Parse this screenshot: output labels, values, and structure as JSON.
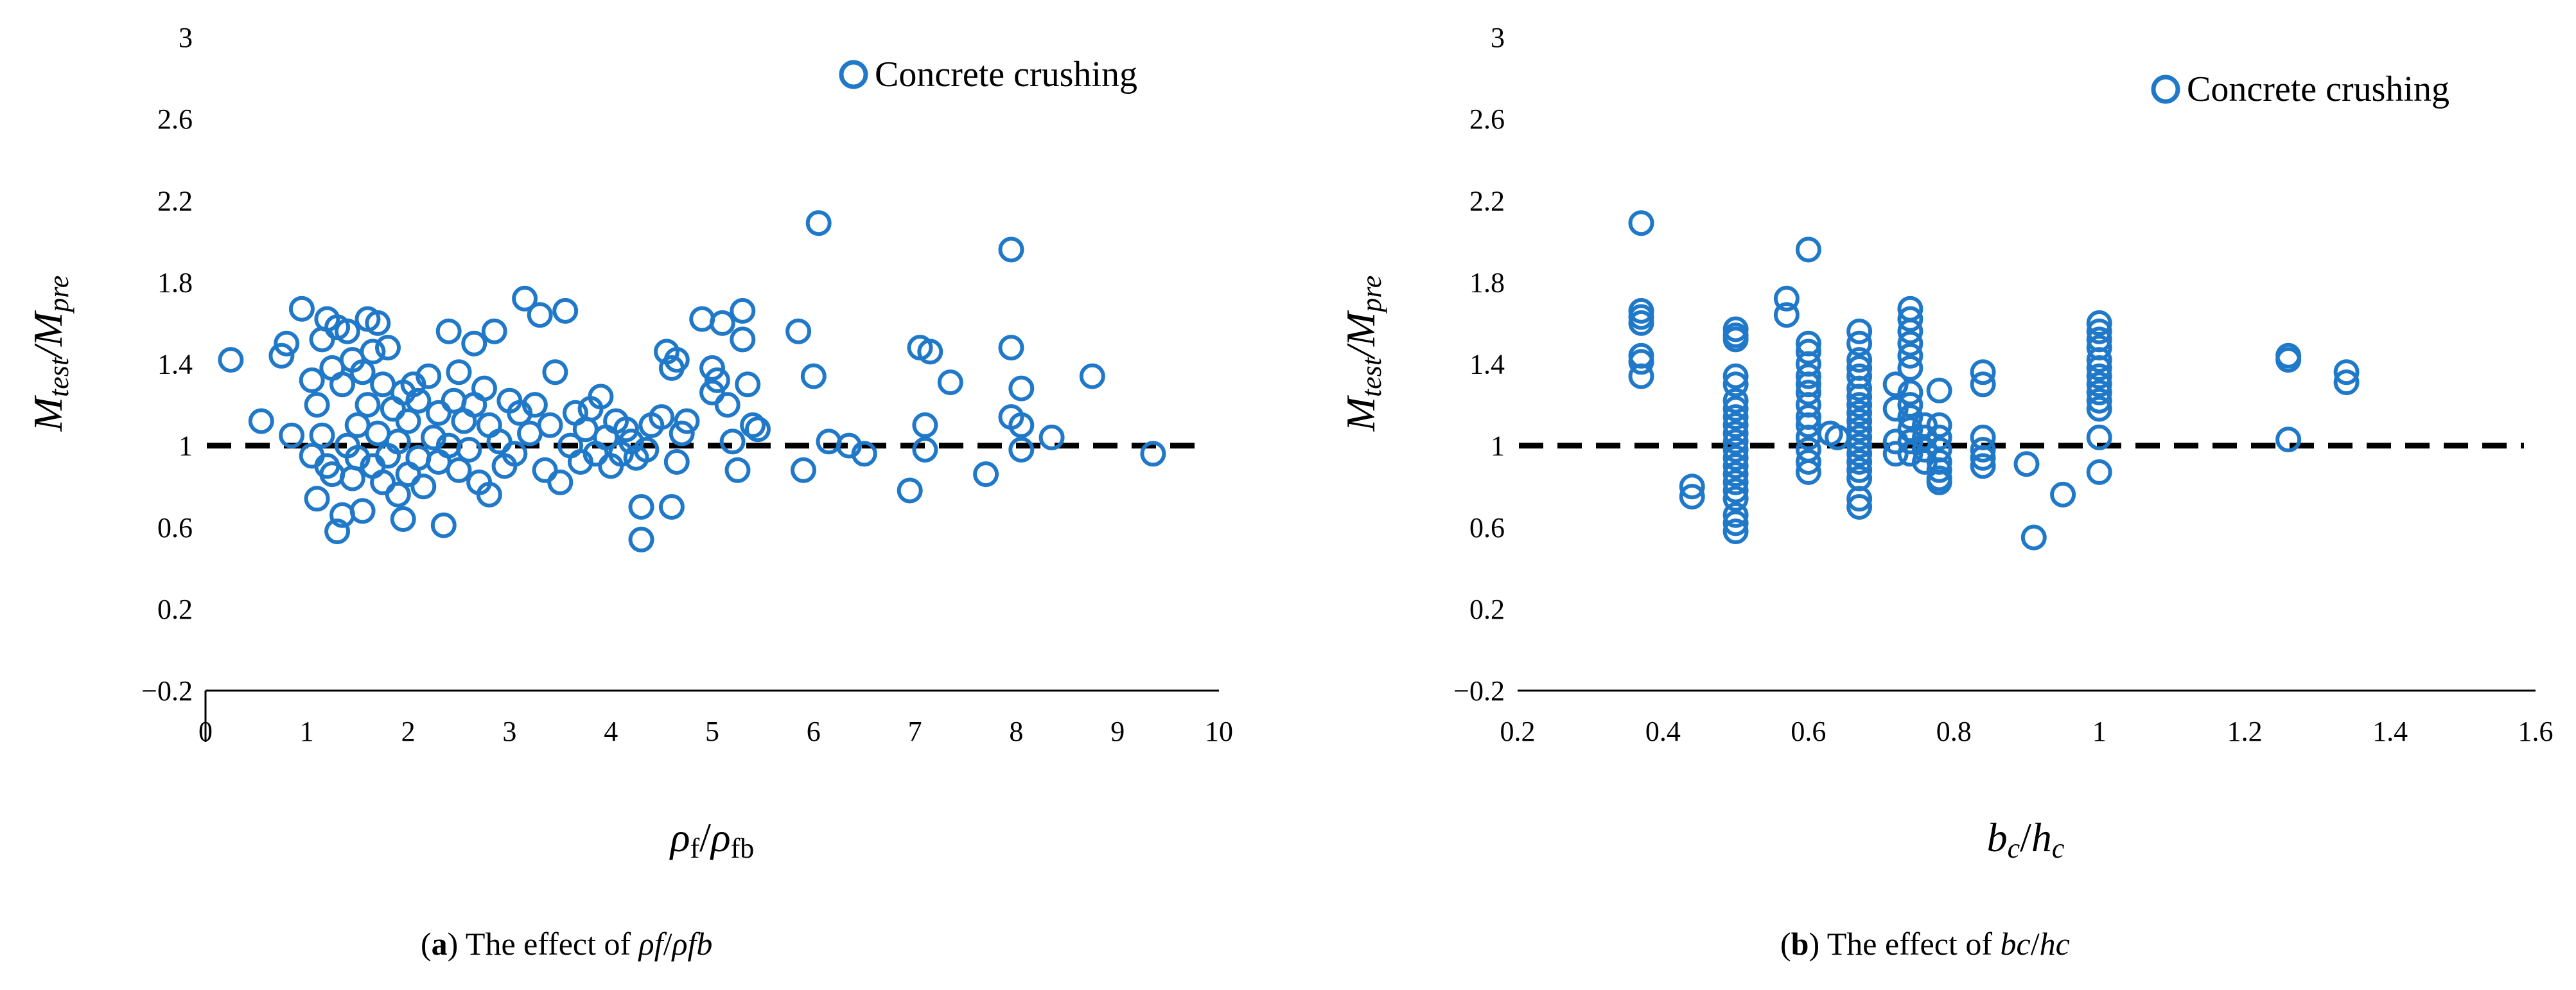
{
  "colors": {
    "marker": "#1F78C8",
    "refline": "#000000",
    "axis": "#000000"
  },
  "captions": [
    {
      "letter": "a",
      "text": "The effect of ",
      "sym1": "ρf",
      "slash": "/",
      "sym2": "ρfb"
    },
    {
      "letter": "b",
      "text": "The effect of ",
      "sym1": "bc",
      "slash": "/",
      "sym2": "hc"
    }
  ],
  "chart_data": [
    {
      "type": "scatter",
      "title": "",
      "xlabel": "ρf/ρfb",
      "ylabel": "Mtest/Mpre",
      "xlim": [
        0,
        10
      ],
      "ylim": [
        -0.2,
        3
      ],
      "xticks": [
        "0",
        "1",
        "2",
        "3",
        "4",
        "5",
        "6",
        "7",
        "8",
        "9",
        "10"
      ],
      "yticks": [
        "−0.2",
        "0.2",
        "0.6",
        "1",
        "1.4",
        "1.8",
        "2.2",
        "2.6",
        "3"
      ],
      "legend": {
        "position": "top-right",
        "entries": [
          "Concrete crushing"
        ]
      },
      "reference_line": {
        "y": 1.0,
        "style": "dashed"
      },
      "series": [
        {
          "name": "Concrete crushing",
          "points": [
            [
              0.25,
              1.42
            ],
            [
              0.55,
              1.12
            ],
            [
              0.75,
              1.44
            ],
            [
              0.8,
              1.5
            ],
            [
              0.85,
              1.05
            ],
            [
              0.95,
              1.67
            ],
            [
              1.05,
              1.32
            ],
            [
              1.05,
              0.95
            ],
            [
              1.1,
              0.74
            ],
            [
              1.1,
              1.2
            ],
            [
              1.15,
              1.52
            ],
            [
              1.15,
              1.05
            ],
            [
              1.2,
              1.62
            ],
            [
              1.2,
              0.9
            ],
            [
              1.25,
              1.38
            ],
            [
              1.25,
              0.86
            ],
            [
              1.3,
              0.58
            ],
            [
              1.3,
              1.58
            ],
            [
              1.35,
              0.66
            ],
            [
              1.35,
              1.3
            ],
            [
              1.4,
              1.56
            ],
            [
              1.4,
              1.0
            ],
            [
              1.45,
              1.42
            ],
            [
              1.45,
              0.84
            ],
            [
              1.5,
              1.1
            ],
            [
              1.5,
              0.94
            ],
            [
              1.55,
              1.36
            ],
            [
              1.55,
              0.68
            ],
            [
              1.6,
              1.62
            ],
            [
              1.6,
              1.2
            ],
            [
              1.65,
              0.9
            ],
            [
              1.65,
              1.46
            ],
            [
              1.7,
              1.6
            ],
            [
              1.7,
              1.06
            ],
            [
              1.75,
              1.3
            ],
            [
              1.75,
              0.82
            ],
            [
              1.8,
              1.48
            ],
            [
              1.8,
              0.95
            ],
            [
              1.85,
              1.18
            ],
            [
              1.9,
              0.76
            ],
            [
              1.9,
              1.02
            ],
            [
              1.95,
              0.64
            ],
            [
              1.95,
              1.26
            ],
            [
              2.0,
              1.12
            ],
            [
              2.0,
              0.86
            ],
            [
              2.05,
              1.3
            ],
            [
              2.1,
              0.94
            ],
            [
              2.1,
              1.22
            ],
            [
              2.15,
              0.8
            ],
            [
              2.2,
              1.34
            ],
            [
              2.25,
              1.04
            ],
            [
              2.3,
              0.92
            ],
            [
              2.3,
              1.16
            ],
            [
              2.35,
              0.61
            ],
            [
              2.4,
              1.56
            ],
            [
              2.4,
              1.0
            ],
            [
              2.45,
              1.22
            ],
            [
              2.5,
              0.88
            ],
            [
              2.5,
              1.36
            ],
            [
              2.55,
              1.12
            ],
            [
              2.6,
              0.98
            ],
            [
              2.65,
              1.5
            ],
            [
              2.65,
              1.2
            ],
            [
              2.7,
              0.82
            ],
            [
              2.75,
              1.28
            ],
            [
              2.8,
              1.1
            ],
            [
              2.8,
              0.76
            ],
            [
              2.85,
              1.56
            ],
            [
              2.9,
              1.02
            ],
            [
              2.95,
              0.9
            ],
            [
              3.0,
              1.22
            ],
            [
              3.05,
              0.96
            ],
            [
              3.1,
              1.16
            ],
            [
              3.15,
              1.72
            ],
            [
              3.2,
              1.06
            ],
            [
              3.25,
              1.2
            ],
            [
              3.3,
              1.64
            ],
            [
              3.35,
              0.88
            ],
            [
              3.4,
              1.1
            ],
            [
              3.45,
              1.36
            ],
            [
              3.5,
              0.82
            ],
            [
              3.55,
              1.66
            ],
            [
              3.6,
              1.0
            ],
            [
              3.65,
              1.16
            ],
            [
              3.7,
              0.92
            ],
            [
              3.75,
              1.08
            ],
            [
              3.8,
              1.18
            ],
            [
              3.85,
              0.96
            ],
            [
              3.9,
              1.24
            ],
            [
              3.95,
              1.04
            ],
            [
              4.0,
              0.9
            ],
            [
              4.05,
              1.12
            ],
            [
              4.1,
              0.96
            ],
            [
              4.15,
              1.08
            ],
            [
              4.2,
              1.02
            ],
            [
              4.25,
              0.94
            ],
            [
              4.3,
              0.54
            ],
            [
              4.3,
              0.7
            ],
            [
              4.35,
              0.98
            ],
            [
              4.4,
              1.1
            ],
            [
              4.5,
              1.14
            ],
            [
              4.55,
              1.46
            ],
            [
              4.6,
              0.7
            ],
            [
              4.6,
              1.38
            ],
            [
              4.65,
              0.92
            ],
            [
              4.65,
              1.42
            ],
            [
              4.7,
              1.06
            ],
            [
              4.75,
              1.12
            ],
            [
              4.9,
              1.62
            ],
            [
              5.0,
              1.26
            ],
            [
              5.0,
              1.38
            ],
            [
              5.05,
              1.32
            ],
            [
              5.1,
              1.6
            ],
            [
              5.15,
              1.2
            ],
            [
              5.2,
              1.02
            ],
            [
              5.25,
              0.88
            ],
            [
              5.3,
              1.66
            ],
            [
              5.3,
              1.52
            ],
            [
              5.35,
              1.3
            ],
            [
              5.4,
              1.1
            ],
            [
              5.45,
              1.08
            ],
            [
              5.85,
              1.56
            ],
            [
              5.9,
              0.88
            ],
            [
              6.0,
              1.34
            ],
            [
              6.05,
              2.09
            ],
            [
              6.15,
              1.02
            ],
            [
              6.35,
              1.0
            ],
            [
              6.5,
              0.96
            ],
            [
              6.95,
              0.78
            ],
            [
              7.05,
              1.48
            ],
            [
              7.1,
              1.1
            ],
            [
              7.1,
              0.98
            ],
            [
              7.15,
              1.46
            ],
            [
              7.35,
              1.31
            ],
            [
              7.7,
              0.86
            ],
            [
              7.95,
              1.96
            ],
            [
              7.95,
              1.48
            ],
            [
              7.95,
              1.14
            ],
            [
              8.05,
              1.28
            ],
            [
              8.05,
              1.1
            ],
            [
              8.05,
              0.98
            ],
            [
              8.35,
              1.04
            ],
            [
              8.75,
              1.34
            ],
            [
              9.35,
              0.96
            ]
          ]
        }
      ]
    },
    {
      "type": "scatter",
      "title": "",
      "xlabel": "bc/hc",
      "ylabel": "Mtest/Mpre",
      "xlim": [
        0.2,
        1.6
      ],
      "ylim": [
        -0.2,
        3
      ],
      "xticks": [
        "0.2",
        "0.4",
        "0.6",
        "0.8",
        "1",
        "1.2",
        "1.4",
        "1.6"
      ],
      "yticks": [
        "−0.2",
        "0.2",
        "0.6",
        "1",
        "1.4",
        "1.8",
        "2.2",
        "2.6",
        "3"
      ],
      "legend": {
        "position": "top-right",
        "entries": [
          "Concrete crushing"
        ]
      },
      "reference_line": {
        "y": 1.0,
        "style": "dashed"
      },
      "series": [
        {
          "name": "Concrete crushing",
          "points": [
            [
              0.37,
              2.09
            ],
            [
              0.37,
              1.66
            ],
            [
              0.37,
              1.63
            ],
            [
              0.37,
              1.6
            ],
            [
              0.37,
              1.44
            ],
            [
              0.37,
              1.41
            ],
            [
              0.37,
              1.34
            ],
            [
              0.44,
              0.8
            ],
            [
              0.44,
              0.75
            ],
            [
              0.5,
              1.57
            ],
            [
              0.5,
              1.54
            ],
            [
              0.5,
              1.52
            ],
            [
              0.5,
              1.34
            ],
            [
              0.5,
              1.3
            ],
            [
              0.5,
              1.22
            ],
            [
              0.5,
              1.18
            ],
            [
              0.5,
              1.14
            ],
            [
              0.5,
              1.1
            ],
            [
              0.5,
              1.06
            ],
            [
              0.5,
              1.02
            ],
            [
              0.5,
              0.98
            ],
            [
              0.5,
              0.94
            ],
            [
              0.5,
              0.9
            ],
            [
              0.5,
              0.86
            ],
            [
              0.5,
              0.82
            ],
            [
              0.5,
              0.78
            ],
            [
              0.5,
              0.74
            ],
            [
              0.5,
              0.66
            ],
            [
              0.5,
              0.62
            ],
            [
              0.5,
              0.58
            ],
            [
              0.57,
              1.72
            ],
            [
              0.57,
              1.64
            ],
            [
              0.6,
              1.96
            ],
            [
              0.6,
              1.5
            ],
            [
              0.6,
              1.46
            ],
            [
              0.6,
              1.4
            ],
            [
              0.6,
              1.34
            ],
            [
              0.6,
              1.3
            ],
            [
              0.6,
              1.26
            ],
            [
              0.6,
              1.2
            ],
            [
              0.6,
              1.14
            ],
            [
              0.6,
              1.1
            ],
            [
              0.6,
              1.04
            ],
            [
              0.6,
              0.98
            ],
            [
              0.6,
              0.92
            ],
            [
              0.6,
              0.87
            ],
            [
              0.63,
              1.06
            ],
            [
              0.64,
              1.04
            ],
            [
              0.67,
              1.56
            ],
            [
              0.67,
              1.5
            ],
            [
              0.67,
              1.42
            ],
            [
              0.67,
              1.38
            ],
            [
              0.67,
              1.34
            ],
            [
              0.67,
              1.28
            ],
            [
              0.67,
              1.24
            ],
            [
              0.67,
              1.2
            ],
            [
              0.67,
              1.16
            ],
            [
              0.67,
              1.12
            ],
            [
              0.67,
              1.08
            ],
            [
              0.67,
              1.04
            ],
            [
              0.67,
              1.0
            ],
            [
              0.67,
              0.96
            ],
            [
              0.67,
              0.92
            ],
            [
              0.67,
              0.88
            ],
            [
              0.67,
              0.84
            ],
            [
              0.67,
              0.74
            ],
            [
              0.67,
              0.7
            ],
            [
              0.72,
              1.3
            ],
            [
              0.72,
              1.18
            ],
            [
              0.72,
              1.02
            ],
            [
              0.72,
              0.96
            ],
            [
              0.74,
              1.67
            ],
            [
              0.74,
              1.62
            ],
            [
              0.74,
              1.56
            ],
            [
              0.74,
              1.5
            ],
            [
              0.74,
              1.44
            ],
            [
              0.74,
              1.38
            ],
            [
              0.74,
              1.26
            ],
            [
              0.74,
              1.2
            ],
            [
              0.74,
              1.14
            ],
            [
              0.74,
              1.08
            ],
            [
              0.74,
              1.02
            ],
            [
              0.74,
              0.96
            ],
            [
              0.76,
              1.1
            ],
            [
              0.76,
              1.04
            ],
            [
              0.76,
              0.98
            ],
            [
              0.76,
              0.92
            ],
            [
              0.78,
              1.27
            ],
            [
              0.78,
              1.1
            ],
            [
              0.78,
              1.04
            ],
            [
              0.78,
              0.98
            ],
            [
              0.78,
              0.92
            ],
            [
              0.78,
              0.88
            ],
            [
              0.78,
              0.84
            ],
            [
              0.78,
              0.82
            ],
            [
              0.84,
              1.36
            ],
            [
              0.84,
              1.3
            ],
            [
              0.84,
              1.04
            ],
            [
              0.84,
              0.98
            ],
            [
              0.84,
              0.94
            ],
            [
              0.84,
              0.9
            ],
            [
              0.9,
              0.91
            ],
            [
              0.91,
              0.55
            ],
            [
              0.95,
              0.76
            ],
            [
              1.0,
              1.6
            ],
            [
              1.0,
              1.56
            ],
            [
              1.0,
              1.52
            ],
            [
              1.0,
              1.48
            ],
            [
              1.0,
              1.42
            ],
            [
              1.0,
              1.38
            ],
            [
              1.0,
              1.34
            ],
            [
              1.0,
              1.3
            ],
            [
              1.0,
              1.26
            ],
            [
              1.0,
              1.22
            ],
            [
              1.0,
              1.18
            ],
            [
              1.0,
              1.04
            ],
            [
              1.0,
              0.87
            ],
            [
              1.26,
              1.44
            ],
            [
              1.26,
              1.42
            ],
            [
              1.26,
              1.03
            ],
            [
              1.34,
              1.36
            ],
            [
              1.34,
              1.31
            ]
          ]
        }
      ]
    }
  ]
}
